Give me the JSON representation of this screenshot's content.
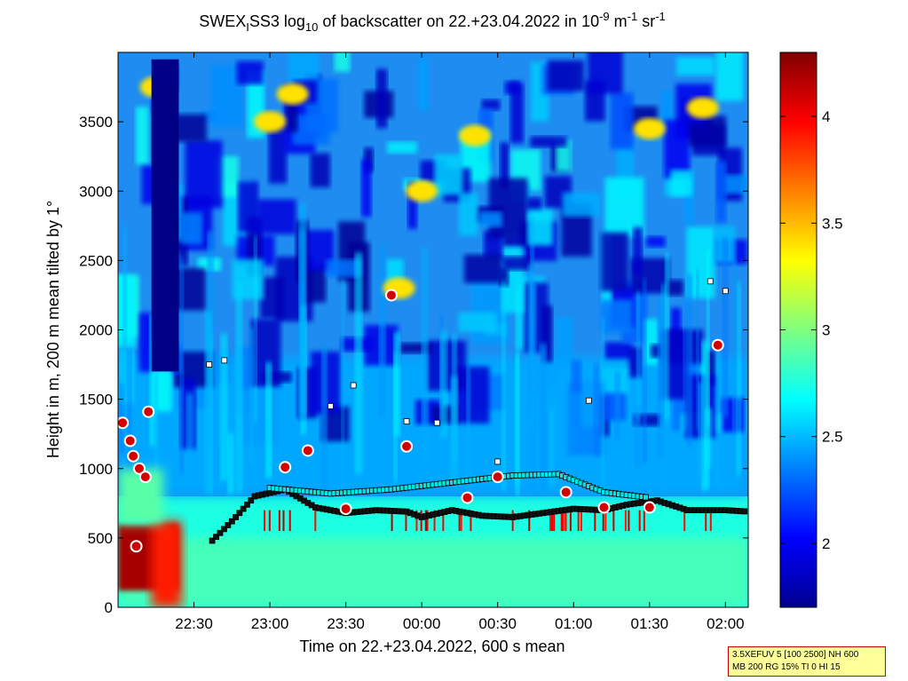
{
  "chart_data": {
    "type": "heatmap",
    "title": {
      "prefix": "SWEX",
      "sub1": "I",
      "mid": "SS3 log",
      "sub2": "10",
      "text": " of backscatter on 22.+23.04.2022 in 10",
      "exp1": "-9",
      "unit_m": " m",
      "exp2": "-1",
      "unit_sr": " sr",
      "exp3": "-1"
    },
    "xlabel": "Time on 22.+23.04.2022, 600 s mean",
    "ylabel": "Height in m, 200 m mean tilted by 1°",
    "x_range_hours": [
      22.0,
      26.15
    ],
    "xticks": [
      {
        "label": "22:30",
        "hours": 22.5
      },
      {
        "label": "23:00",
        "hours": 23.0
      },
      {
        "label": "23:30",
        "hours": 23.5
      },
      {
        "label": "00:00",
        "hours": 24.0
      },
      {
        "label": "00:30",
        "hours": 24.5
      },
      {
        "label": "01:00",
        "hours": 25.0
      },
      {
        "label": "01:30",
        "hours": 25.5
      },
      {
        "label": "02:00",
        "hours": 26.0
      }
    ],
    "ylim": [
      0,
      4000
    ],
    "yticks": [
      {
        "label": "0",
        "value": 0
      },
      {
        "label": "500",
        "value": 500
      },
      {
        "label": "1000",
        "value": 1000
      },
      {
        "label": "1500",
        "value": 1500
      },
      {
        "label": "2000",
        "value": 2000
      },
      {
        "label": "2500",
        "value": 2500
      },
      {
        "label": "3000",
        "value": 3000
      },
      {
        "label": "3500",
        "value": 3500
      }
    ],
    "colorbar": {
      "clim": [
        1.7,
        4.3
      ],
      "colormap": "jet",
      "ticks": [
        {
          "label": "2",
          "value": 2.0
        },
        {
          "label": "2.5",
          "value": 2.5
        },
        {
          "label": "3",
          "value": 3.0
        },
        {
          "label": "3.5",
          "value": 3.5
        },
        {
          "label": "4",
          "value": 4.0
        }
      ]
    },
    "cloud_base_layer": [
      {
        "hours": 22.62,
        "height": 480
      },
      {
        "hours": 22.75,
        "height": 620
      },
      {
        "hours": 22.9,
        "height": 800
      },
      {
        "hours": 23.1,
        "height": 850
      },
      {
        "hours": 23.3,
        "height": 720
      },
      {
        "hours": 23.5,
        "height": 680
      },
      {
        "hours": 23.7,
        "height": 700
      },
      {
        "hours": 23.9,
        "height": 690
      },
      {
        "hours": 24.0,
        "height": 650
      },
      {
        "hours": 24.2,
        "height": 700
      },
      {
        "hours": 24.4,
        "height": 660
      },
      {
        "hours": 24.6,
        "height": 650
      },
      {
        "hours": 24.8,
        "height": 680
      },
      {
        "hours": 25.0,
        "height": 710
      },
      {
        "hours": 25.2,
        "height": 700
      },
      {
        "hours": 25.35,
        "height": 740
      },
      {
        "hours": 25.55,
        "height": 770
      },
      {
        "hours": 25.75,
        "height": 700
      },
      {
        "hours": 26.0,
        "height": 700
      },
      {
        "hours": 26.15,
        "height": 690
      }
    ],
    "mixing_layer": [
      {
        "hours": 23.0,
        "height": 860
      },
      {
        "hours": 23.4,
        "height": 820
      },
      {
        "hours": 23.8,
        "height": 850
      },
      {
        "hours": 24.2,
        "height": 900
      },
      {
        "hours": 24.6,
        "height": 950
      },
      {
        "hours": 24.9,
        "height": 960
      },
      {
        "hours": 25.2,
        "height": 830
      },
      {
        "hours": 25.5,
        "height": 790
      }
    ],
    "upper_layer": [
      {
        "hours": 22.6,
        "height": 1750
      },
      {
        "hours": 22.7,
        "height": 1780
      },
      {
        "hours": 23.4,
        "height": 1450
      },
      {
        "hours": 23.55,
        "height": 1600
      },
      {
        "hours": 23.9,
        "height": 1340
      },
      {
        "hours": 24.1,
        "height": 1330
      },
      {
        "hours": 24.5,
        "height": 1050
      },
      {
        "hours": 25.1,
        "height": 1490
      },
      {
        "hours": 25.9,
        "height": 2350
      },
      {
        "hours": 26.0,
        "height": 2280
      }
    ],
    "precip_markers": [
      {
        "hours": 22.03,
        "height": 1330
      },
      {
        "hours": 22.08,
        "height": 1200
      },
      {
        "hours": 22.1,
        "height": 1090
      },
      {
        "hours": 22.14,
        "height": 1000
      },
      {
        "hours": 22.2,
        "height": 1410
      },
      {
        "hours": 22.18,
        "height": 940
      },
      {
        "hours": 22.12,
        "height": 440
      },
      {
        "hours": 23.1,
        "height": 1010
      },
      {
        "hours": 23.25,
        "height": 1130
      },
      {
        "hours": 23.5,
        "height": 710
      },
      {
        "hours": 23.8,
        "height": 2250
      },
      {
        "hours": 23.9,
        "height": 1160
      },
      {
        "hours": 24.3,
        "height": 790
      },
      {
        "hours": 24.5,
        "height": 940
      },
      {
        "hours": 24.95,
        "height": 830
      },
      {
        "hours": 25.2,
        "height": 720
      },
      {
        "hours": 25.5,
        "height": 720
      },
      {
        "hours": 25.95,
        "height": 1890
      }
    ]
  },
  "info_box": {
    "line1": "3.5XEFUV 5 [100 2500] NH 600",
    "line2": "MB 200 RG 15% TI 0 HI 15"
  }
}
